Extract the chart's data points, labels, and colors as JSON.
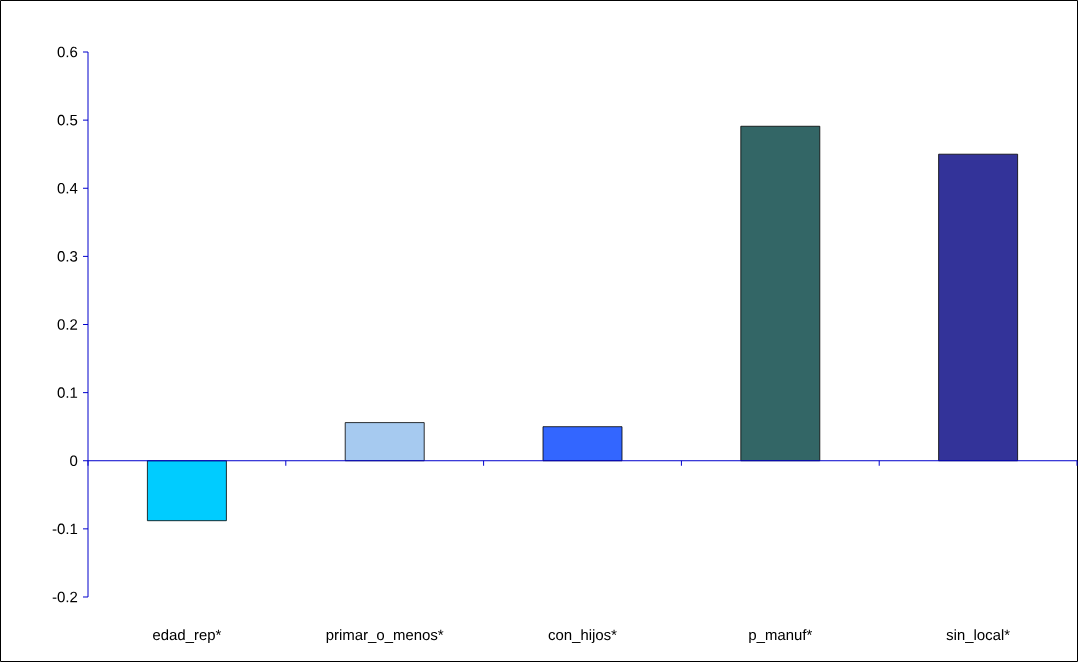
{
  "chart_data": {
    "type": "bar",
    "categories": [
      "edad_rep*",
      "primar_o_menos*",
      "con_hijos*",
      "p_manuf*",
      "sin_local*"
    ],
    "values": [
      -0.088,
      0.056,
      0.05,
      0.491,
      0.45
    ],
    "colors": [
      "#00ccff",
      "#a6caf0",
      "#3366ff",
      "#336666",
      "#333399"
    ],
    "ylim": [
      -0.2,
      0.6
    ],
    "yticks": [
      -0.2,
      -0.1,
      0,
      0.1,
      0.2,
      0.3,
      0.4,
      0.5,
      0.6
    ],
    "ref_lines": [
      {
        "axis": "y",
        "value": 0,
        "color": "#0000cc"
      }
    ]
  }
}
